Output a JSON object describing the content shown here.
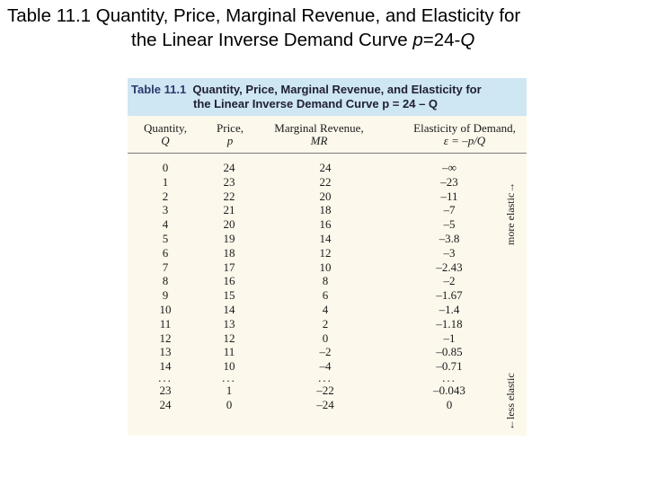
{
  "slide": {
    "title_line1": "Table 11.1  Quantity, Price, Marginal Revenue, and Elasticity for",
    "title_line2_prefix": "the Linear Inverse Demand Curve ",
    "title_line2_var": "p",
    "title_line2_suffix": "=24-",
    "title_line2_var2": "Q"
  },
  "table": {
    "caption_number": "Table 11.1",
    "caption_line1": "Quantity, Price, Marginal Revenue, and Elasticity for",
    "caption_line2": "the Linear Inverse Demand Curve p = 24 – Q",
    "headers": {
      "quantity": "Quantity,",
      "quantity_sym": "Q",
      "price": "Price,",
      "price_sym": "p",
      "mr": "Marginal Revenue,",
      "mr_sym": "MR",
      "elasticity": "Elasticity of Demand,",
      "elasticity_sym": "ε = –p/Q"
    },
    "rows": [
      {
        "q": "0",
        "p": "24",
        "mr": "24",
        "e": "–∞"
      },
      {
        "q": "1",
        "p": "23",
        "mr": "22",
        "e": "–23"
      },
      {
        "q": "2",
        "p": "22",
        "mr": "20",
        "e": "–11"
      },
      {
        "q": "3",
        "p": "21",
        "mr": "18",
        "e": "–7"
      },
      {
        "q": "4",
        "p": "20",
        "mr": "16",
        "e": "–5"
      },
      {
        "q": "5",
        "p": "19",
        "mr": "14",
        "e": "–3.8"
      },
      {
        "q": "6",
        "p": "18",
        "mr": "12",
        "e": "–3"
      },
      {
        "q": "7",
        "p": "17",
        "mr": "10",
        "e": "–2.43"
      },
      {
        "q": "8",
        "p": "16",
        "mr": "8",
        "e": "–2"
      },
      {
        "q": "9",
        "p": "15",
        "mr": "6",
        "e": "–1.67"
      },
      {
        "q": "10",
        "p": "14",
        "mr": "4",
        "e": "–1.4"
      },
      {
        "q": "11",
        "p": "13",
        "mr": "2",
        "e": "–1.18"
      },
      {
        "q": "12",
        "p": "12",
        "mr": "0",
        "e": "–1"
      },
      {
        "q": "13",
        "p": "11",
        "mr": "–2",
        "e": "–0.85"
      },
      {
        "q": "14",
        "p": "10",
        "mr": "–4",
        "e": "–0.71"
      },
      {
        "q": "...",
        "p": "...",
        "mr": "...",
        "e": "..."
      },
      {
        "q": "23",
        "p": "1",
        "mr": "–22",
        "e": "–0.043"
      },
      {
        "q": "24",
        "p": "0",
        "mr": "–24",
        "e": "0"
      }
    ],
    "side_more": "more elastic→",
    "side_less": "←less elastic"
  }
}
